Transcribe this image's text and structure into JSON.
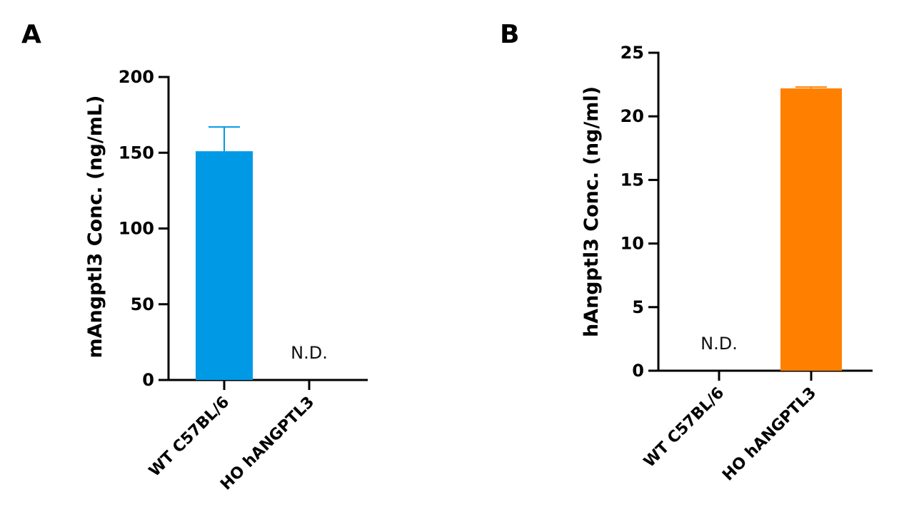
{
  "chart_data": [
    {
      "type": "bar",
      "panel_label": "A",
      "ylabel": "mAngptl3 Conc. (ng/mL)",
      "xlabel": "",
      "categories": [
        "WT C57BL/6",
        "HO hANGPTL3"
      ],
      "values": [
        151,
        null
      ],
      "error": [
        16,
        null
      ],
      "bar_annotations": [
        "",
        "N.D."
      ],
      "ylim": [
        0,
        200
      ],
      "yticks": [
        0,
        50,
        100,
        150,
        200
      ],
      "bar_color": "#0099e6",
      "grid": false,
      "legend": "none"
    },
    {
      "type": "bar",
      "panel_label": "B",
      "ylabel": "hAngptl3 Conc. (ng/ml)",
      "xlabel": "",
      "categories": [
        "WT C57BL/6",
        "HO hANGPTL3"
      ],
      "values": [
        null,
        22.2
      ],
      "error": [
        null,
        0.1
      ],
      "bar_annotations": [
        "N.D.",
        ""
      ],
      "ylim": [
        0,
        25
      ],
      "yticks": [
        0,
        5,
        10,
        15,
        20,
        25
      ],
      "bar_color": "#ff8000",
      "grid": false,
      "legend": "none"
    }
  ]
}
